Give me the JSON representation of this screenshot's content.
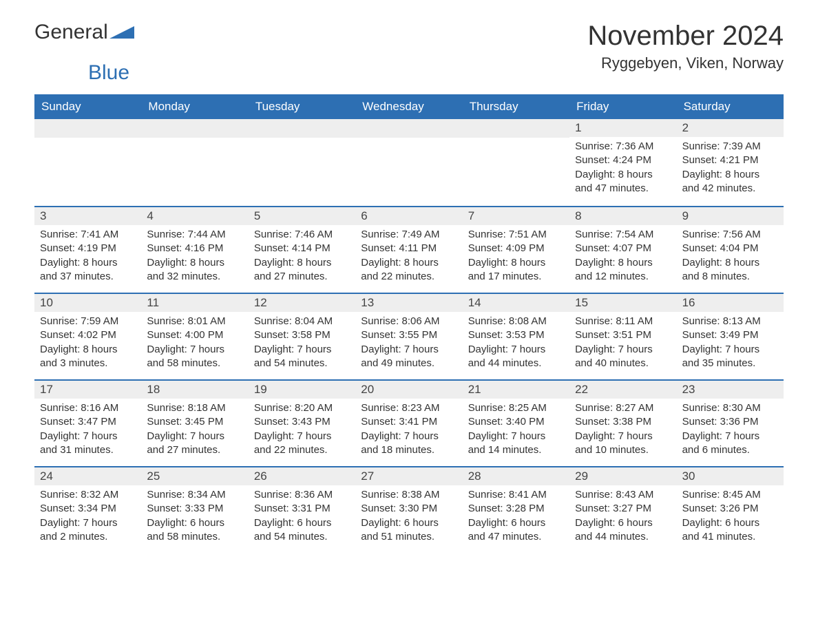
{
  "logo": {
    "text1": "General",
    "text2": "Blue"
  },
  "title": "November 2024",
  "location": "Ryggebyen, Viken, Norway",
  "colors": {
    "brand_blue": "#2d6fb3",
    "header_text": "#ffffff",
    "daynum_bg": "#eeeeee",
    "body_text": "#333333",
    "background": "#ffffff"
  },
  "dow": [
    "Sunday",
    "Monday",
    "Tuesday",
    "Wednesday",
    "Thursday",
    "Friday",
    "Saturday"
  ],
  "weeks": [
    [
      null,
      null,
      null,
      null,
      null,
      {
        "n": "1",
        "sr": "7:36 AM",
        "ss": "4:24 PM",
        "dl": "8 hours and 47 minutes."
      },
      {
        "n": "2",
        "sr": "7:39 AM",
        "ss": "4:21 PM",
        "dl": "8 hours and 42 minutes."
      }
    ],
    [
      {
        "n": "3",
        "sr": "7:41 AM",
        "ss": "4:19 PM",
        "dl": "8 hours and 37 minutes."
      },
      {
        "n": "4",
        "sr": "7:44 AM",
        "ss": "4:16 PM",
        "dl": "8 hours and 32 minutes."
      },
      {
        "n": "5",
        "sr": "7:46 AM",
        "ss": "4:14 PM",
        "dl": "8 hours and 27 minutes."
      },
      {
        "n": "6",
        "sr": "7:49 AM",
        "ss": "4:11 PM",
        "dl": "8 hours and 22 minutes."
      },
      {
        "n": "7",
        "sr": "7:51 AM",
        "ss": "4:09 PM",
        "dl": "8 hours and 17 minutes."
      },
      {
        "n": "8",
        "sr": "7:54 AM",
        "ss": "4:07 PM",
        "dl": "8 hours and 12 minutes."
      },
      {
        "n": "9",
        "sr": "7:56 AM",
        "ss": "4:04 PM",
        "dl": "8 hours and 8 minutes."
      }
    ],
    [
      {
        "n": "10",
        "sr": "7:59 AM",
        "ss": "4:02 PM",
        "dl": "8 hours and 3 minutes."
      },
      {
        "n": "11",
        "sr": "8:01 AM",
        "ss": "4:00 PM",
        "dl": "7 hours and 58 minutes."
      },
      {
        "n": "12",
        "sr": "8:04 AM",
        "ss": "3:58 PM",
        "dl": "7 hours and 54 minutes."
      },
      {
        "n": "13",
        "sr": "8:06 AM",
        "ss": "3:55 PM",
        "dl": "7 hours and 49 minutes."
      },
      {
        "n": "14",
        "sr": "8:08 AM",
        "ss": "3:53 PM",
        "dl": "7 hours and 44 minutes."
      },
      {
        "n": "15",
        "sr": "8:11 AM",
        "ss": "3:51 PM",
        "dl": "7 hours and 40 minutes."
      },
      {
        "n": "16",
        "sr": "8:13 AM",
        "ss": "3:49 PM",
        "dl": "7 hours and 35 minutes."
      }
    ],
    [
      {
        "n": "17",
        "sr": "8:16 AM",
        "ss": "3:47 PM",
        "dl": "7 hours and 31 minutes."
      },
      {
        "n": "18",
        "sr": "8:18 AM",
        "ss": "3:45 PM",
        "dl": "7 hours and 27 minutes."
      },
      {
        "n": "19",
        "sr": "8:20 AM",
        "ss": "3:43 PM",
        "dl": "7 hours and 22 minutes."
      },
      {
        "n": "20",
        "sr": "8:23 AM",
        "ss": "3:41 PM",
        "dl": "7 hours and 18 minutes."
      },
      {
        "n": "21",
        "sr": "8:25 AM",
        "ss": "3:40 PM",
        "dl": "7 hours and 14 minutes."
      },
      {
        "n": "22",
        "sr": "8:27 AM",
        "ss": "3:38 PM",
        "dl": "7 hours and 10 minutes."
      },
      {
        "n": "23",
        "sr": "8:30 AM",
        "ss": "3:36 PM",
        "dl": "7 hours and 6 minutes."
      }
    ],
    [
      {
        "n": "24",
        "sr": "8:32 AM",
        "ss": "3:34 PM",
        "dl": "7 hours and 2 minutes."
      },
      {
        "n": "25",
        "sr": "8:34 AM",
        "ss": "3:33 PM",
        "dl": "6 hours and 58 minutes."
      },
      {
        "n": "26",
        "sr": "8:36 AM",
        "ss": "3:31 PM",
        "dl": "6 hours and 54 minutes."
      },
      {
        "n": "27",
        "sr": "8:38 AM",
        "ss": "3:30 PM",
        "dl": "6 hours and 51 minutes."
      },
      {
        "n": "28",
        "sr": "8:41 AM",
        "ss": "3:28 PM",
        "dl": "6 hours and 47 minutes."
      },
      {
        "n": "29",
        "sr": "8:43 AM",
        "ss": "3:27 PM",
        "dl": "6 hours and 44 minutes."
      },
      {
        "n": "30",
        "sr": "8:45 AM",
        "ss": "3:26 PM",
        "dl": "6 hours and 41 minutes."
      }
    ]
  ],
  "labels": {
    "sunrise": "Sunrise: ",
    "sunset": "Sunset: ",
    "daylight": "Daylight: "
  }
}
